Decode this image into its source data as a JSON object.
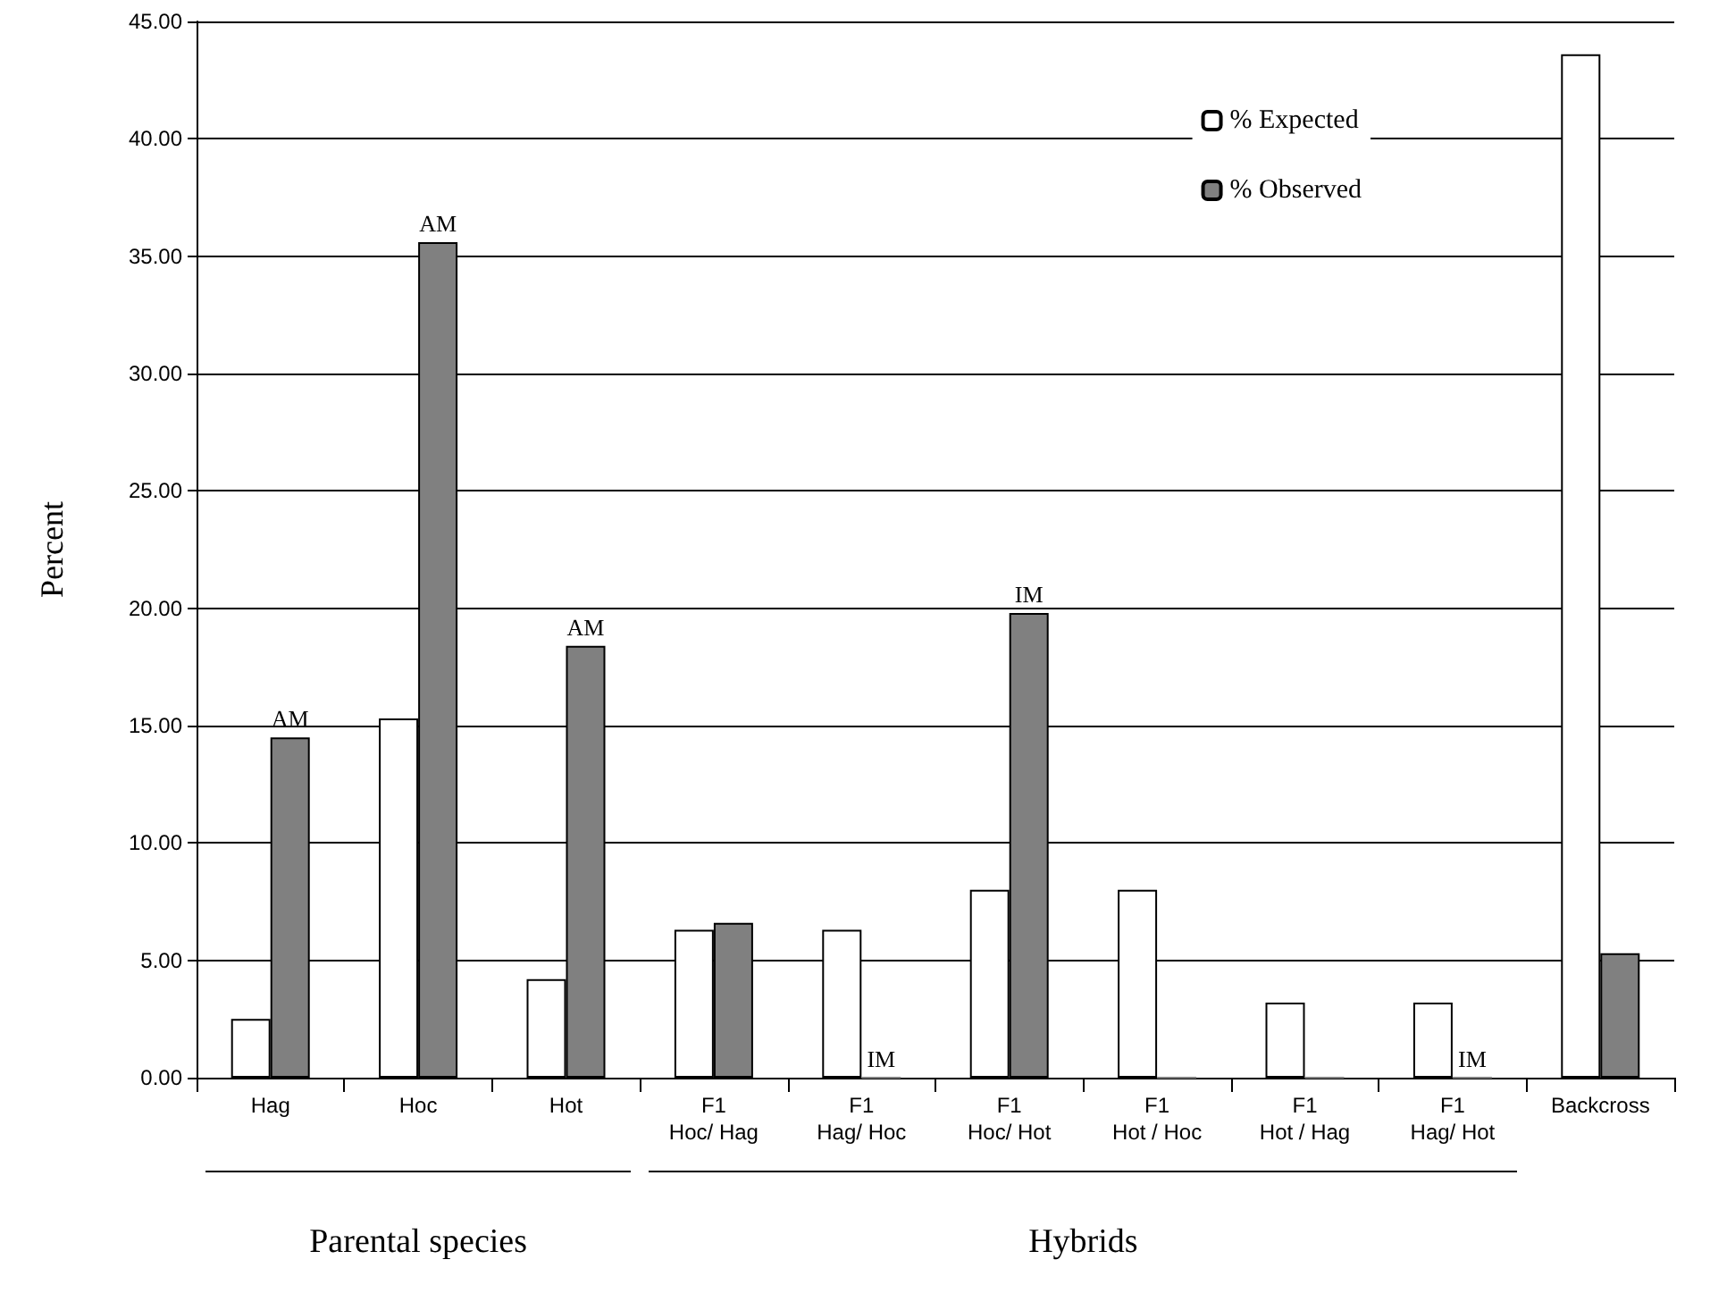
{
  "chart_data": {
    "type": "bar",
    "ylabel": "Percent",
    "categories": [
      "Hag",
      "Hoc",
      "Hot",
      "F1\nHoc/ Hag",
      "F1\nHag/ Hoc",
      "F1\nHoc/ Hot",
      "F1\nHot / Hoc",
      "F1\nHot / Hag",
      "F1\nHag/ Hot",
      "Backcross"
    ],
    "series": [
      {
        "name": "% Expected",
        "color": "#ffffff",
        "values": [
          2.5,
          15.3,
          4.2,
          6.3,
          6.3,
          8.0,
          8.0,
          3.2,
          3.2,
          43.6
        ]
      },
      {
        "name": "% Observed",
        "color": "#808080",
        "values": [
          14.5,
          35.6,
          18.4,
          6.6,
          0,
          19.8,
          0,
          0,
          0,
          5.3
        ]
      }
    ],
    "ylim": [
      0,
      45
    ],
    "yticks": [
      {
        "value": 0,
        "label": "0.00"
      },
      {
        "value": 5,
        "label": "5.00"
      },
      {
        "value": 10,
        "label": "10.00"
      },
      {
        "value": 15,
        "label": "15.00"
      },
      {
        "value": 20,
        "label": "20.00"
      },
      {
        "value": 25,
        "label": "25.00"
      },
      {
        "value": 30,
        "label": "30.00"
      },
      {
        "value": 35,
        "label": "35.00"
      },
      {
        "value": 40,
        "label": "40.00"
      },
      {
        "value": 45,
        "label": "45.00"
      }
    ],
    "grid": "y",
    "legend": "top right",
    "annotations": [
      {
        "text": "AM",
        "x": "Hag",
        "y": 14.5
      },
      {
        "text": "AM",
        "x": "Hoc",
        "y": 35.6
      },
      {
        "text": "AM",
        "x": "Hot",
        "y": 18.4
      },
      {
        "text": "IM",
        "x": "F1\nHag/ Hoc",
        "y": 0
      },
      {
        "text": "IM",
        "x": "F1\nHoc/ Hot",
        "y": 19.8
      },
      {
        "text": "IM",
        "x": "F1\nHag/ Hot",
        "y": 0
      },
      "Parental species",
      "Hybrids"
    ]
  }
}
